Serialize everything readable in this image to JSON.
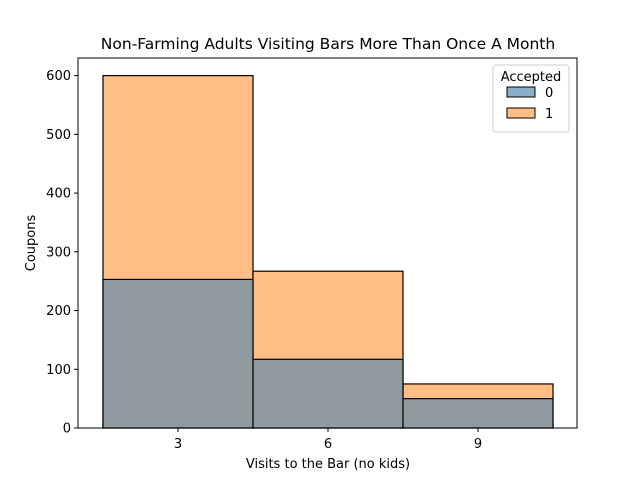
{
  "chart_data": {
    "type": "bar",
    "stacking": "overlay",
    "title": "Non-Farming Adults Visiting Bars More Than Once A Month",
    "xlabel": "Visits to the Bar (no kids)",
    "ylabel": "Coupons",
    "categories": [
      "3",
      "6",
      "9"
    ],
    "ylim": [
      0,
      630
    ],
    "yticks": [
      0,
      100,
      200,
      300,
      400,
      500,
      600
    ],
    "grid": false,
    "legend": {
      "title": "Accepted",
      "position": "top-right"
    },
    "series": [
      {
        "name": "0",
        "color": "#8f9a9e",
        "values": [
          253,
          117,
          50
        ]
      },
      {
        "name": "1",
        "color": "#ffbe86",
        "values": [
          600,
          267,
          75
        ]
      }
    ]
  }
}
